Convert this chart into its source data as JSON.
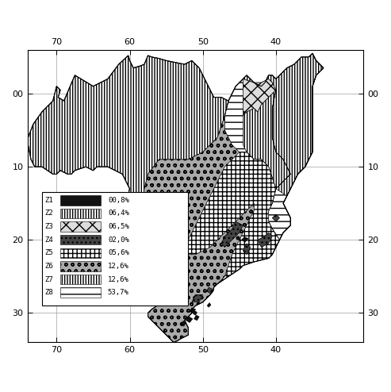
{
  "legend_zones": [
    "Z1",
    "Z2",
    "Z3",
    "Z4",
    "Z5",
    "Z6",
    "Z7",
    "Z8"
  ],
  "legend_percentages": [
    "00,8%",
    "06,4%",
    "06,5%",
    "02,0%",
    "05,6%",
    "12,6%",
    "12,6%",
    "53,7%"
  ],
  "xlim_min": -74,
  "xlim_max": -28,
  "ylim_min": -34,
  "ylim_max": 6,
  "xticks": [
    -70,
    -60,
    -50,
    -40
  ],
  "yticks": [
    0,
    -10,
    -20,
    -30
  ],
  "ytick_labels": [
    "00",
    "10",
    "20",
    "30"
  ],
  "xtick_labels": [
    "70",
    "60",
    "50",
    "40"
  ],
  "fig_width": 4.93,
  "fig_height": 4.94,
  "dpi": 100
}
